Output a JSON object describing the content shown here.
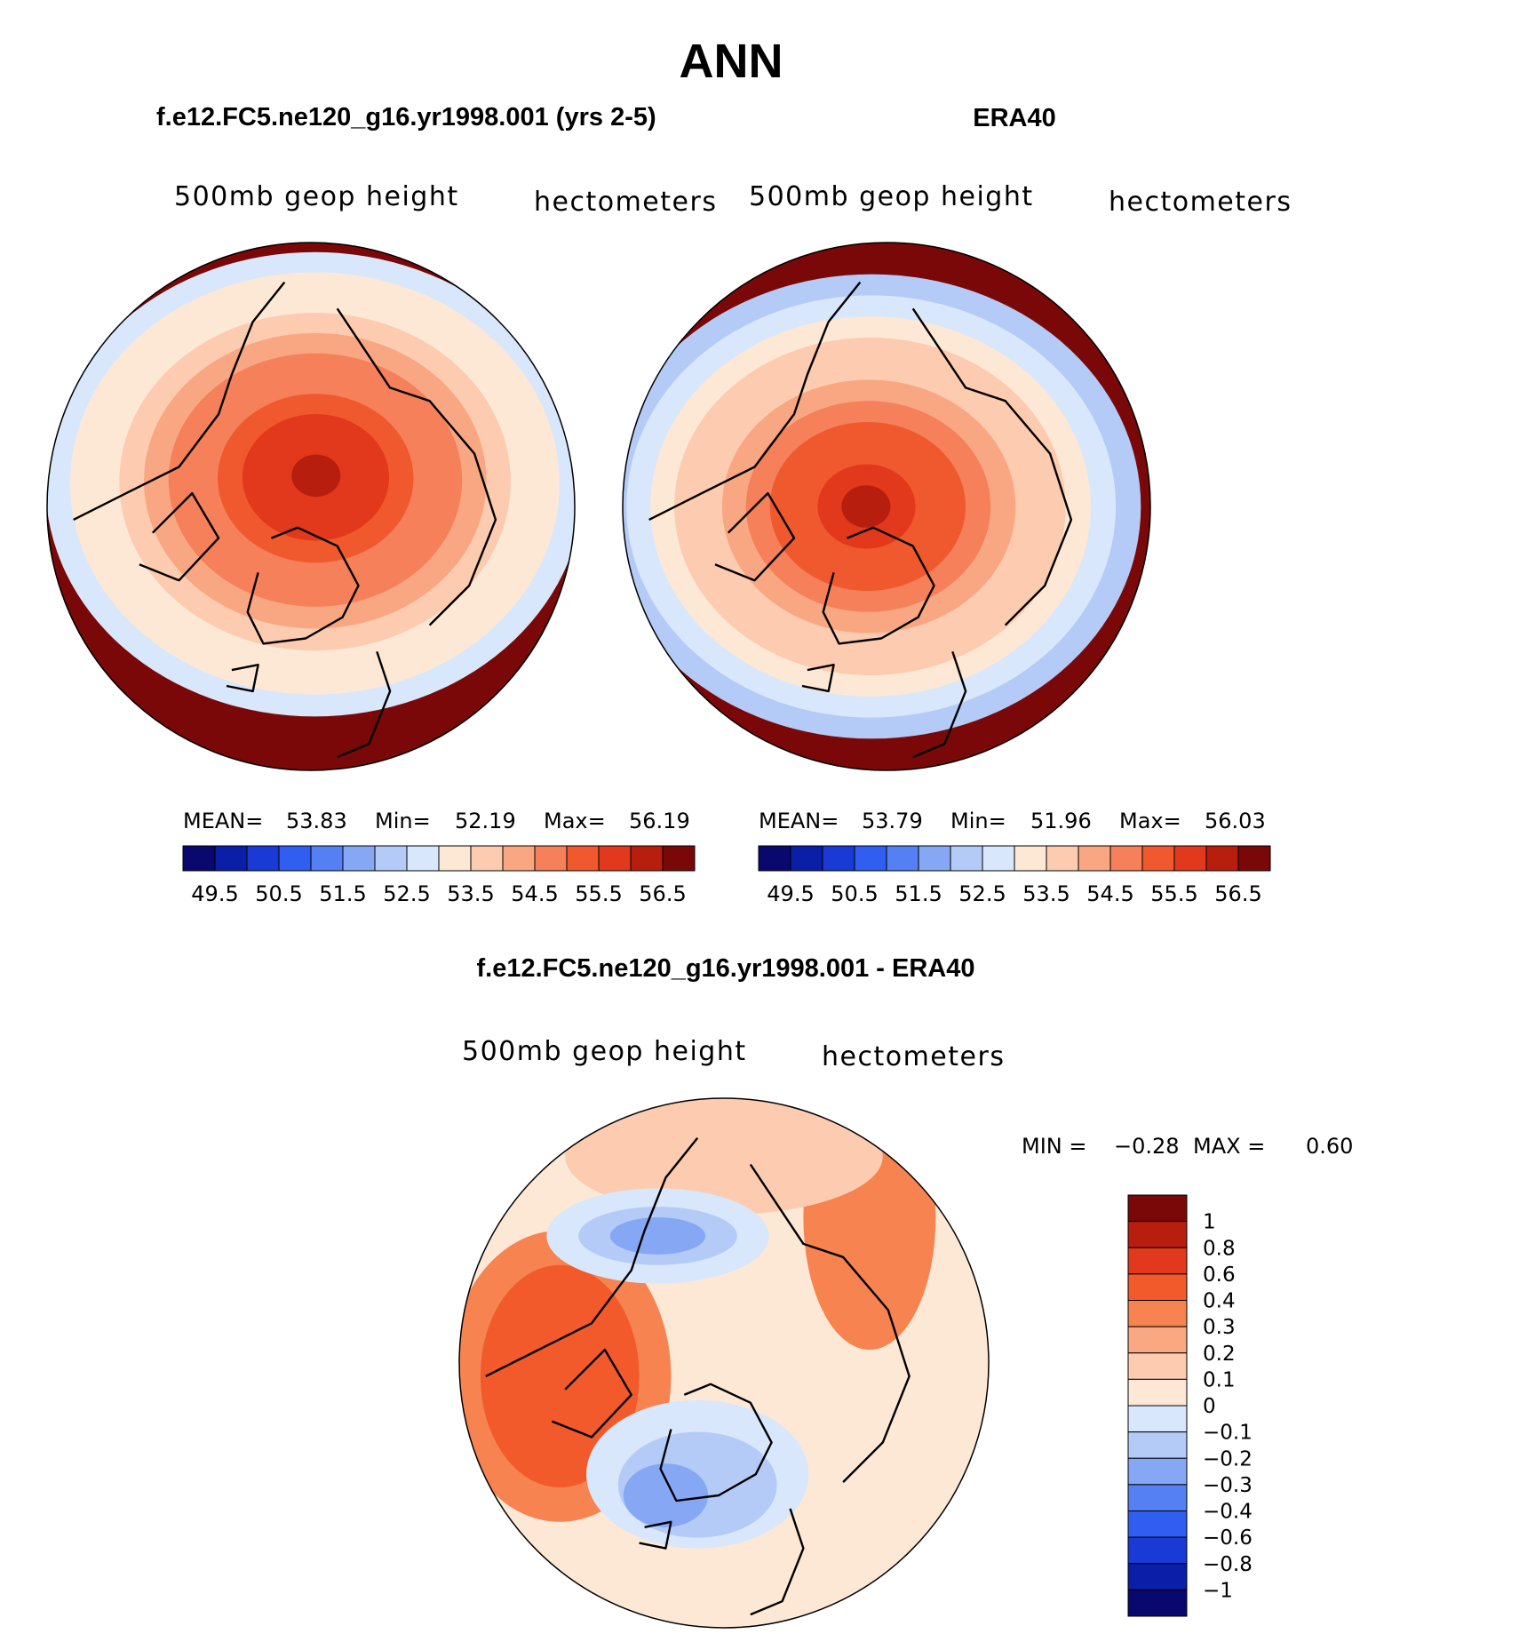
{
  "figure_title": "ANN",
  "chart_data": [
    {
      "type": "heatmap",
      "projection": "north-polar-stereographic",
      "title": "f.e12.FC5.ne120_g16.yr1998.001 (yrs 2-5)",
      "left_label": "500mb geop height",
      "right_label": "hectometers",
      "stats": {
        "mean_label": "MEAN=",
        "mean": "53.83",
        "min_label": "Min=",
        "min": "52.19",
        "max_label": "Max=",
        "max": "56.19"
      },
      "colorbar_ticks": [
        "49.5",
        "50.5",
        "51.5",
        "52.5",
        "53.5",
        "54.5",
        "55.5",
        "56.5"
      ],
      "field_center": [
        0.02,
        -0.12
      ],
      "field_range": [
        52.19,
        56.19
      ]
    },
    {
      "type": "heatmap",
      "projection": "north-polar-stereographic",
      "title": "ERA40",
      "left_label": "500mb geop height",
      "right_label": "hectometers",
      "stats": {
        "mean_label": "MEAN=",
        "mean": "53.79",
        "min_label": "Min=",
        "min": "51.96",
        "max_label": "Max=",
        "max": "56.03"
      },
      "colorbar_ticks": [
        "49.5",
        "50.5",
        "51.5",
        "52.5",
        "53.5",
        "54.5",
        "55.5",
        "56.5"
      ],
      "field_center": [
        -0.08,
        0.0
      ],
      "field_range": [
        51.96,
        56.03
      ]
    },
    {
      "type": "heatmap",
      "projection": "north-polar-stereographic",
      "title": "f.e12.FC5.ne120_g16.yr1998.001 - ERA40",
      "left_label": "500mb geop height",
      "right_label": "hectometers",
      "stats": {
        "min_label": "MIN =",
        "min": "−0.28",
        "max_label": "MAX =",
        "max": "0.60"
      },
      "colorbar_ticks": [
        "1",
        "0.8",
        "0.6",
        "0.4",
        "0.3",
        "0.2",
        "0.1",
        "0",
        "−0.1",
        "−0.2",
        "−0.3",
        "−0.4",
        "−0.6",
        "−0.8",
        "−1"
      ],
      "field_range": [
        -0.28,
        0.6
      ]
    }
  ],
  "colors": {
    "abs_levels": [
      "#08086e",
      "#0a1ea8",
      "#1a3ad6",
      "#2f5ef0",
      "#5580f3",
      "#86a7f4",
      "#b3cbf6",
      "#d8e7fb",
      "#fde8d6",
      "#fccbb0",
      "#f9a782",
      "#f5805a",
      "#f0592d",
      "#e2391c",
      "#b81e0e",
      "#7a0808"
    ],
    "diff_levels": [
      "#7a0808",
      "#b81e0e",
      "#e2391c",
      "#f25a2c",
      "#f68350",
      "#f9a882",
      "#fccbb0",
      "#fde8d6",
      "#d8e7fb",
      "#b3cbf6",
      "#86a7f4",
      "#5580f3",
      "#2f5ef0",
      "#1a3ad6",
      "#0a1ea8",
      "#08086e"
    ]
  }
}
